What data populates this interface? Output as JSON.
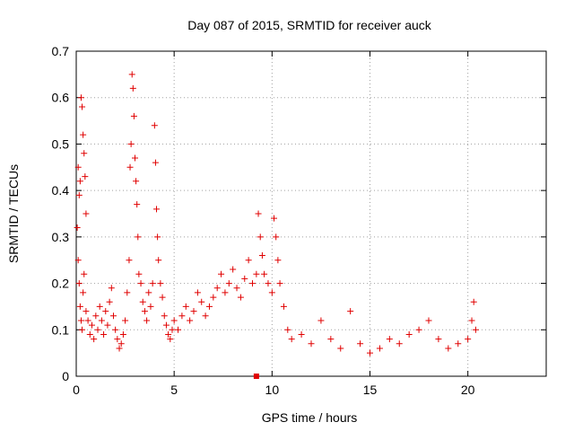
{
  "chart_data": {
    "type": "scatter",
    "title": "Day 087 of 2015, SRMTID for receiver auck",
    "xlabel": "GPS time / hours",
    "ylabel": "SRMTID / TECUs",
    "xlim": [
      0,
      24
    ],
    "ylim": [
      0,
      0.7
    ],
    "x_ticks": [
      "0",
      "5",
      "10",
      "15",
      "20"
    ],
    "y_ticks": [
      "0",
      "0.1",
      "0.2",
      "0.3",
      "0.4",
      "0.5",
      "0.6",
      "0.7"
    ],
    "grid": true,
    "marker": "plus",
    "color": "#e00000",
    "outlier_marker": {
      "x": 9.2,
      "y": 0.0,
      "shape": "square"
    },
    "series": [
      {
        "name": "SRMTID",
        "points": [
          [
            0.05,
            0.32
          ],
          [
            0.1,
            0.45
          ],
          [
            0.15,
            0.39
          ],
          [
            0.2,
            0.42
          ],
          [
            0.25,
            0.6
          ],
          [
            0.3,
            0.58
          ],
          [
            0.35,
            0.52
          ],
          [
            0.4,
            0.48
          ],
          [
            0.45,
            0.43
          ],
          [
            0.5,
            0.35
          ],
          [
            0.1,
            0.25
          ],
          [
            0.15,
            0.2
          ],
          [
            0.2,
            0.15
          ],
          [
            0.25,
            0.12
          ],
          [
            0.3,
            0.1
          ],
          [
            0.35,
            0.18
          ],
          [
            0.4,
            0.22
          ],
          [
            0.5,
            0.14
          ],
          [
            0.6,
            0.12
          ],
          [
            0.7,
            0.09
          ],
          [
            0.8,
            0.11
          ],
          [
            0.9,
            0.08
          ],
          [
            1.0,
            0.13
          ],
          [
            1.1,
            0.1
          ],
          [
            1.2,
            0.15
          ],
          [
            1.3,
            0.12
          ],
          [
            1.4,
            0.09
          ],
          [
            1.5,
            0.14
          ],
          [
            1.6,
            0.11
          ],
          [
            1.7,
            0.16
          ],
          [
            1.8,
            0.19
          ],
          [
            1.9,
            0.13
          ],
          [
            2.0,
            0.1
          ],
          [
            2.1,
            0.08
          ],
          [
            2.2,
            0.06
          ],
          [
            2.3,
            0.07
          ],
          [
            2.4,
            0.09
          ],
          [
            2.5,
            0.12
          ],
          [
            2.6,
            0.18
          ],
          [
            2.7,
            0.25
          ],
          [
            2.75,
            0.45
          ],
          [
            2.8,
            0.5
          ],
          [
            2.85,
            0.65
          ],
          [
            2.9,
            0.62
          ],
          [
            2.95,
            0.56
          ],
          [
            3.0,
            0.47
          ],
          [
            3.05,
            0.42
          ],
          [
            3.1,
            0.37
          ],
          [
            3.15,
            0.3
          ],
          [
            3.2,
            0.22
          ],
          [
            3.3,
            0.2
          ],
          [
            3.4,
            0.16
          ],
          [
            3.5,
            0.14
          ],
          [
            3.6,
            0.12
          ],
          [
            3.7,
            0.18
          ],
          [
            3.8,
            0.15
          ],
          [
            3.9,
            0.2
          ],
          [
            4.0,
            0.54
          ],
          [
            4.05,
            0.46
          ],
          [
            4.1,
            0.36
          ],
          [
            4.15,
            0.3
          ],
          [
            4.2,
            0.25
          ],
          [
            4.3,
            0.2
          ],
          [
            4.4,
            0.17
          ],
          [
            4.5,
            0.13
          ],
          [
            4.6,
            0.11
          ],
          [
            4.7,
            0.09
          ],
          [
            4.8,
            0.08
          ],
          [
            4.9,
            0.1
          ],
          [
            5.0,
            0.12
          ],
          [
            5.2,
            0.1
          ],
          [
            5.4,
            0.13
          ],
          [
            5.6,
            0.15
          ],
          [
            5.8,
            0.12
          ],
          [
            6.0,
            0.14
          ],
          [
            6.2,
            0.18
          ],
          [
            6.4,
            0.16
          ],
          [
            6.6,
            0.13
          ],
          [
            6.8,
            0.15
          ],
          [
            7.0,
            0.17
          ],
          [
            7.2,
            0.19
          ],
          [
            7.4,
            0.22
          ],
          [
            7.6,
            0.18
          ],
          [
            7.8,
            0.2
          ],
          [
            8.0,
            0.23
          ],
          [
            8.2,
            0.19
          ],
          [
            8.4,
            0.17
          ],
          [
            8.6,
            0.21
          ],
          [
            8.8,
            0.25
          ],
          [
            9.0,
            0.2
          ],
          [
            9.2,
            0.22
          ],
          [
            9.3,
            0.35
          ],
          [
            9.4,
            0.3
          ],
          [
            9.5,
            0.26
          ],
          [
            9.6,
            0.22
          ],
          [
            9.8,
            0.2
          ],
          [
            10.0,
            0.18
          ],
          [
            10.1,
            0.34
          ],
          [
            10.2,
            0.3
          ],
          [
            10.3,
            0.25
          ],
          [
            10.4,
            0.2
          ],
          [
            10.6,
            0.15
          ],
          [
            10.8,
            0.1
          ],
          [
            11.0,
            0.08
          ],
          [
            11.5,
            0.09
          ],
          [
            12.0,
            0.07
          ],
          [
            12.5,
            0.12
          ],
          [
            13.0,
            0.08
          ],
          [
            13.5,
            0.06
          ],
          [
            14.0,
            0.14
          ],
          [
            14.5,
            0.07
          ],
          [
            15.0,
            0.05
          ],
          [
            15.5,
            0.06
          ],
          [
            16.0,
            0.08
          ],
          [
            16.5,
            0.07
          ],
          [
            17.0,
            0.09
          ],
          [
            17.5,
            0.1
          ],
          [
            18.0,
            0.12
          ],
          [
            18.5,
            0.08
          ],
          [
            19.0,
            0.06
          ],
          [
            19.5,
            0.07
          ],
          [
            20.0,
            0.08
          ],
          [
            20.2,
            0.12
          ],
          [
            20.3,
            0.16
          ],
          [
            20.4,
            0.1
          ]
        ]
      }
    ]
  }
}
